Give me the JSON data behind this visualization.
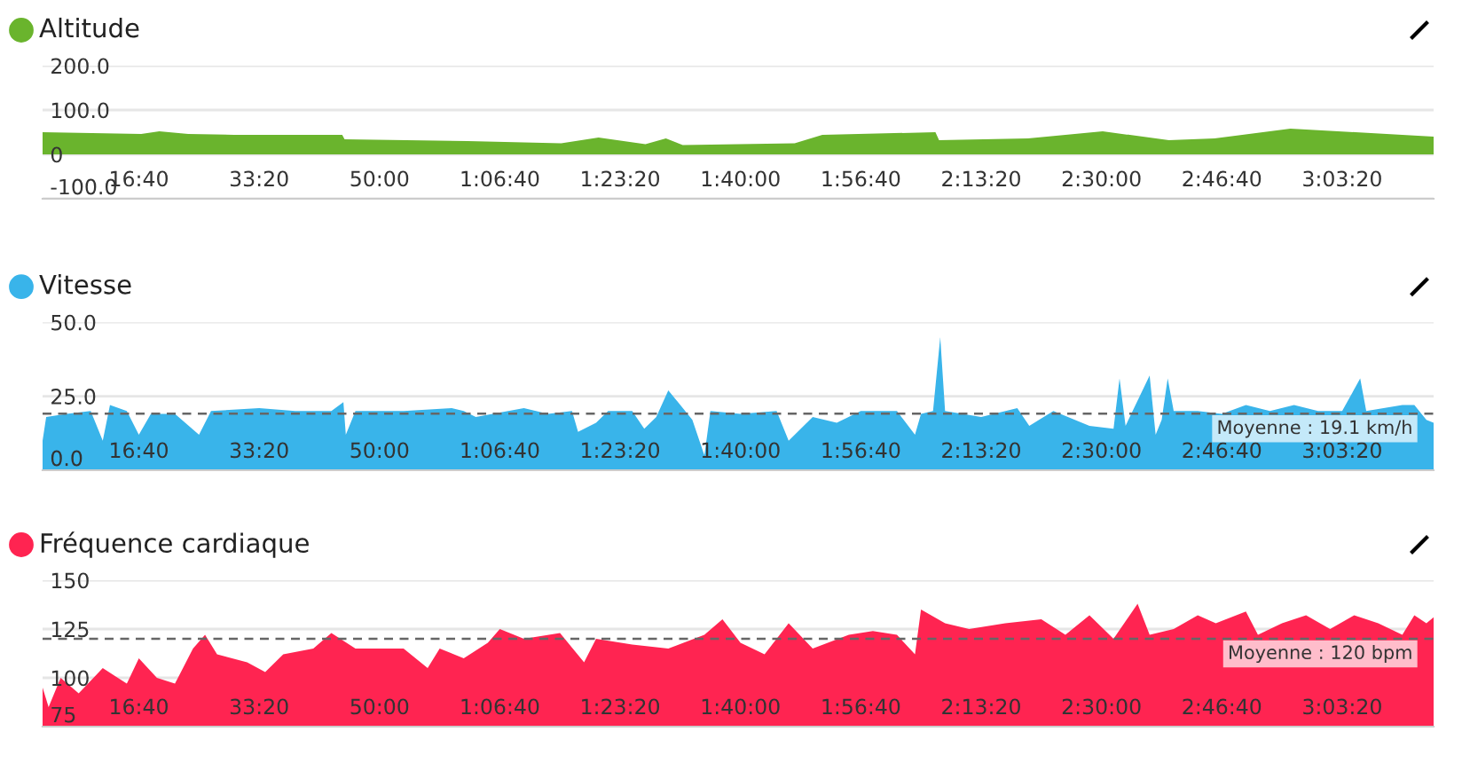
{
  "chart_data": [
    {
      "type": "area",
      "title": "Altitude",
      "x": [
        200,
        1020,
        1170,
        1410,
        1790,
        2690,
        2710,
        3730,
        4510,
        4820,
        5210,
        5380,
        5520,
        6450,
        6680,
        7620,
        7650,
        8390,
        9010,
        9560,
        9940,
        10570,
        11110,
        11760
      ],
      "series": [
        {
          "color": "#6ab42d",
          "values": [
            50,
            46,
            52,
            46,
            44,
            44,
            34,
            30,
            25,
            38,
            23,
            36,
            21,
            25,
            44,
            50,
            32,
            36,
            52,
            32,
            36,
            58,
            50,
            40
          ]
        }
      ],
      "xlim": [
        200,
        11760
      ],
      "ylim": [
        -100,
        200
      ],
      "yticks": [
        {
          "value": -100,
          "label": "-100.0"
        },
        0,
        {
          "value": 100,
          "label": "100.0"
        },
        {
          "value": 200,
          "label": "200.0"
        }
      ],
      "xticks": [
        {
          "value": 1000,
          "label": "16:40"
        },
        {
          "value": 2000,
          "label": "33:20"
        },
        {
          "value": 3000,
          "label": "50:00"
        },
        {
          "value": 4000,
          "label": "1:06:40"
        },
        {
          "value": 5000,
          "label": "1:23:20"
        },
        {
          "value": 6000,
          "label": "1:40:00"
        },
        {
          "value": 7000,
          "label": "1:56:40"
        },
        {
          "value": 8000,
          "label": "2:13:20"
        },
        {
          "value": 9000,
          "label": "2:30:00"
        },
        {
          "value": 10000,
          "label": "2:46:40"
        },
        {
          "value": 11000,
          "label": "3:03:20"
        }
      ],
      "grid": "y"
    },
    {
      "type": "area",
      "title": "Vitesse",
      "x": [
        200,
        230,
        400,
        600,
        700,
        760,
        900,
        1000,
        1100,
        1300,
        1500,
        1600,
        2000,
        2300,
        2600,
        2700,
        2720,
        2800,
        3200,
        3600,
        3700,
        3800,
        4200,
        4400,
        4600,
        4650,
        4800,
        4900,
        5100,
        5200,
        5300,
        5400,
        5500,
        5600,
        5700,
        5750,
        6000,
        6300,
        6400,
        6600,
        6800,
        7000,
        7300,
        7450,
        7500,
        7600,
        7660,
        7700,
        8000,
        8300,
        8400,
        8600,
        8900,
        9100,
        9150,
        9200,
        9400,
        9450,
        9500,
        9550,
        9600,
        9800,
        10000,
        10200,
        10400,
        10600,
        10800,
        11000,
        11150,
        11200,
        11500,
        11600,
        11700,
        11760
      ],
      "series": [
        {
          "color": "#39b4ea",
          "values": [
            10,
            18,
            19,
            20,
            10,
            22,
            20,
            12,
            19,
            19,
            12,
            20,
            21,
            20,
            20,
            23,
            12,
            20,
            20,
            21,
            20,
            18,
            21,
            19,
            20,
            13,
            16,
            20,
            20,
            14,
            18,
            27,
            22,
            17,
            5,
            20,
            19,
            20,
            10,
            18,
            16,
            20,
            20,
            12,
            19,
            20,
            45,
            20,
            18,
            21,
            15,
            20,
            15,
            14,
            31,
            15,
            32,
            12,
            17,
            31,
            20,
            20,
            19,
            22,
            20,
            22,
            20,
            20,
            31,
            20,
            22,
            22,
            17,
            16
          ]
        }
      ],
      "xlim": [
        200,
        11760
      ],
      "ylim": [
        0,
        50
      ],
      "yticks": [
        {
          "value": 0,
          "label": "0.0"
        },
        {
          "value": 25,
          "label": "25.0"
        },
        {
          "value": 50,
          "label": "50.0"
        }
      ],
      "xticks": [
        {
          "value": 1000,
          "label": "16:40"
        },
        {
          "value": 2000,
          "label": "33:20"
        },
        {
          "value": 3000,
          "label": "50:00"
        },
        {
          "value": 4000,
          "label": "1:06:40"
        },
        {
          "value": 5000,
          "label": "1:23:20"
        },
        {
          "value": 6000,
          "label": "1:40:00"
        },
        {
          "value": 7000,
          "label": "1:56:40"
        },
        {
          "value": 8000,
          "label": "2:13:20"
        },
        {
          "value": 9000,
          "label": "2:30:00"
        },
        {
          "value": 10000,
          "label": "2:46:40"
        },
        {
          "value": 11000,
          "label": "3:03:20"
        }
      ],
      "grid": "y",
      "ref_lines": [
        {
          "axis": "y",
          "value": 19.1,
          "label": "Moyenne : 19.1 km/h",
          "color": "#666666",
          "line_style": "dashed"
        }
      ]
    },
    {
      "type": "area",
      "title": "Fréquence cardiaque",
      "x": [
        200,
        250,
        350,
        500,
        700,
        900,
        1000,
        1150,
        1300,
        1450,
        1550,
        1650,
        1900,
        2050,
        2200,
        2450,
        2600,
        2800,
        3200,
        3400,
        3500,
        3700,
        3900,
        4000,
        4200,
        4500,
        4700,
        4800,
        5100,
        5400,
        5700,
        5850,
        6000,
        6200,
        6400,
        6600,
        6900,
        7100,
        7300,
        7450,
        7500,
        7700,
        7900,
        8200,
        8500,
        8700,
        8900,
        9100,
        9300,
        9400,
        9600,
        9800,
        9950,
        10200,
        10300,
        10500,
        10700,
        10900,
        11100,
        11300,
        11500,
        11600,
        11700,
        11760
      ],
      "series": [
        {
          "color": "#ff2451",
          "values": [
            95,
            85,
            100,
            92,
            105,
            97,
            110,
            100,
            97,
            115,
            122,
            112,
            108,
            103,
            112,
            115,
            123,
            115,
            115,
            105,
            115,
            110,
            118,
            125,
            120,
            123,
            108,
            120,
            117,
            115,
            122,
            130,
            118,
            112,
            128,
            115,
            122,
            124,
            122,
            112,
            135,
            128,
            125,
            128,
            130,
            122,
            132,
            120,
            138,
            122,
            125,
            132,
            128,
            134,
            122,
            128,
            132,
            125,
            132,
            128,
            122,
            132,
            128,
            131
          ]
        }
      ],
      "xlim": [
        200,
        11760
      ],
      "ylim": [
        75,
        150
      ],
      "yticks": [
        75,
        100,
        125,
        150
      ],
      "xticks": [
        {
          "value": 1000,
          "label": "16:40"
        },
        {
          "value": 2000,
          "label": "33:20"
        },
        {
          "value": 3000,
          "label": "50:00"
        },
        {
          "value": 4000,
          "label": "1:06:40"
        },
        {
          "value": 5000,
          "label": "1:23:20"
        },
        {
          "value": 6000,
          "label": "1:40:00"
        },
        {
          "value": 7000,
          "label": "1:56:40"
        },
        {
          "value": 8000,
          "label": "2:13:20"
        },
        {
          "value": 9000,
          "label": "2:30:00"
        },
        {
          "value": 10000,
          "label": "2:46:40"
        },
        {
          "value": 11000,
          "label": "3:03:20"
        }
      ],
      "grid": "y",
      "ref_lines": [
        {
          "axis": "y",
          "value": 120,
          "label": "Moyenne : 120 bpm",
          "color": "#666666",
          "line_style": "dashed"
        }
      ]
    }
  ]
}
